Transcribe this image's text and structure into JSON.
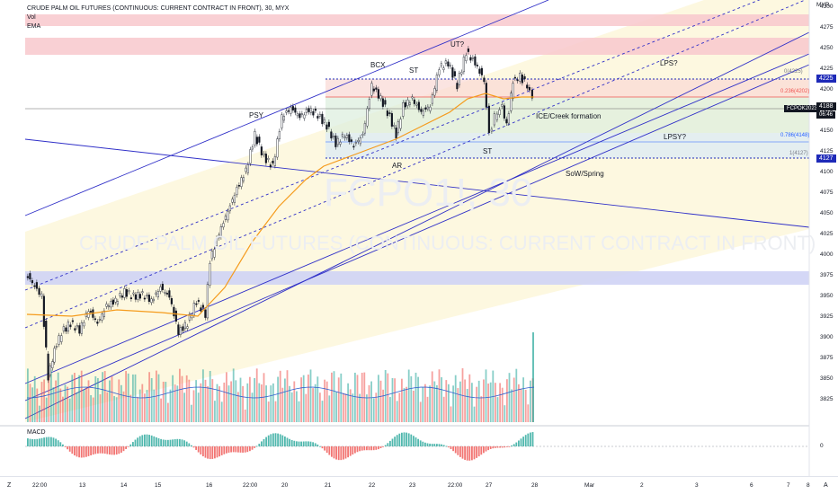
{
  "window": {
    "legend_title": "CRUDE PALM OIL FUTURES (CONTINUOUS: CURRENT CONTRACT IN FRONT), 30, MYX",
    "indicators": [
      "Vol",
      "EMA"
    ],
    "watermark_symbol": "FCPO1!, 30",
    "watermark_name": "CRUDE PALM OIL FUTURES (CONTINUOUS: CURRENT CONTRACT IN FRONT)",
    "macd_label": "MACD",
    "currency": "MYR"
  },
  "price_axis": [
    "4300",
    "4275",
    "4250",
    "4225",
    "4200",
    "4175",
    "4150",
    "4125",
    "4100",
    "4075",
    "4050",
    "4025",
    "4000",
    "3975",
    "3950",
    "3925",
    "3900",
    "3875",
    "3850",
    "3825"
  ],
  "macd_axis": "0",
  "tags": {
    "level_4225": "4225",
    "symbol": "FCPOK2023",
    "last_price": "4188",
    "countdown": "06:46",
    "level_4127": "4127"
  },
  "fib_labels": [
    "0(4225)",
    "0.236(4202)",
    "0.786(4148)",
    "1(4127)"
  ],
  "annotations": {
    "psy": "PSY",
    "bcx": "BCX",
    "st1": "ST",
    "ut": "UT?",
    "lps": "LPS?",
    "ice": "ICE/Creek formation",
    "lpsy": "LPSY?",
    "st2": "ST",
    "ar": "AR",
    "sow": "SoW/Spring"
  },
  "date_axis": [
    "22:00",
    "13",
    "14",
    "15",
    "16",
    "22:00",
    "20",
    "21",
    "22",
    "23",
    "22:00",
    "27",
    "28",
    "Mar",
    "2",
    "3",
    "6",
    "7",
    "8"
  ],
  "bottom_buttons": {
    "left": "Z",
    "right": "A"
  },
  "colors": {
    "up": "#26a69a",
    "down": "#ef5350",
    "channel": "#3030c8",
    "ema": "#f59b1c",
    "zone_red": "#f8c8cc",
    "zone_blue": "#cfd3f5",
    "zone_yellow": "#fdf8dc"
  }
}
